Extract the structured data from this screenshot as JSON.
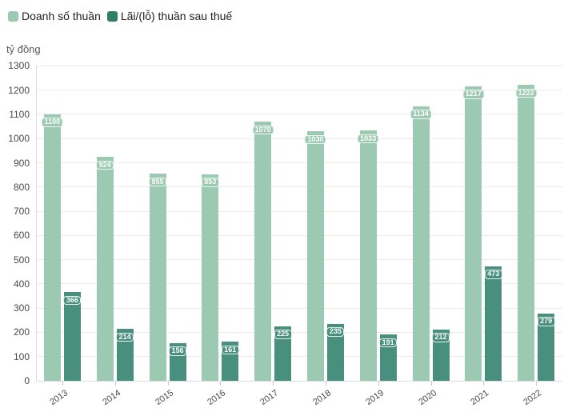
{
  "legend": {
    "items": [
      {
        "label": "Doanh số thuần",
        "color": "#9cc9b1"
      },
      {
        "label": "Lãi/(lỗ) thuần sau thuế",
        "color": "#2e7e68"
      }
    ]
  },
  "unit_label": "tỷ đồng",
  "chart_data": {
    "type": "bar",
    "title": "",
    "categories": [
      "2013",
      "2014",
      "2015",
      "2016",
      "2017",
      "2018",
      "2019",
      "2020",
      "2021",
      "2022"
    ],
    "series": [
      {
        "name": "Doanh số thuần",
        "color": "#9cc9b1",
        "values": [
          1100,
          924,
          855,
          853,
          1070,
          1030,
          1033,
          1134,
          1217,
          1222
        ]
      },
      {
        "name": "Lãi/(lỗ) thuần sau thuế",
        "color": "#48907d",
        "values": [
          366,
          214,
          156,
          161,
          225,
          235,
          191,
          212,
          473,
          279
        ]
      }
    ],
    "xlabel": "",
    "ylabel": "tỷ đồng",
    "ylim": [
      0,
      1300
    ],
    "ytick_step": 100,
    "yticks": [
      0,
      100,
      200,
      300,
      400,
      500,
      600,
      700,
      800,
      900,
      1000,
      1100,
      1200,
      1300
    ],
    "grid": true,
    "legend_position": "top-left",
    "bar_value_labels": true
  }
}
